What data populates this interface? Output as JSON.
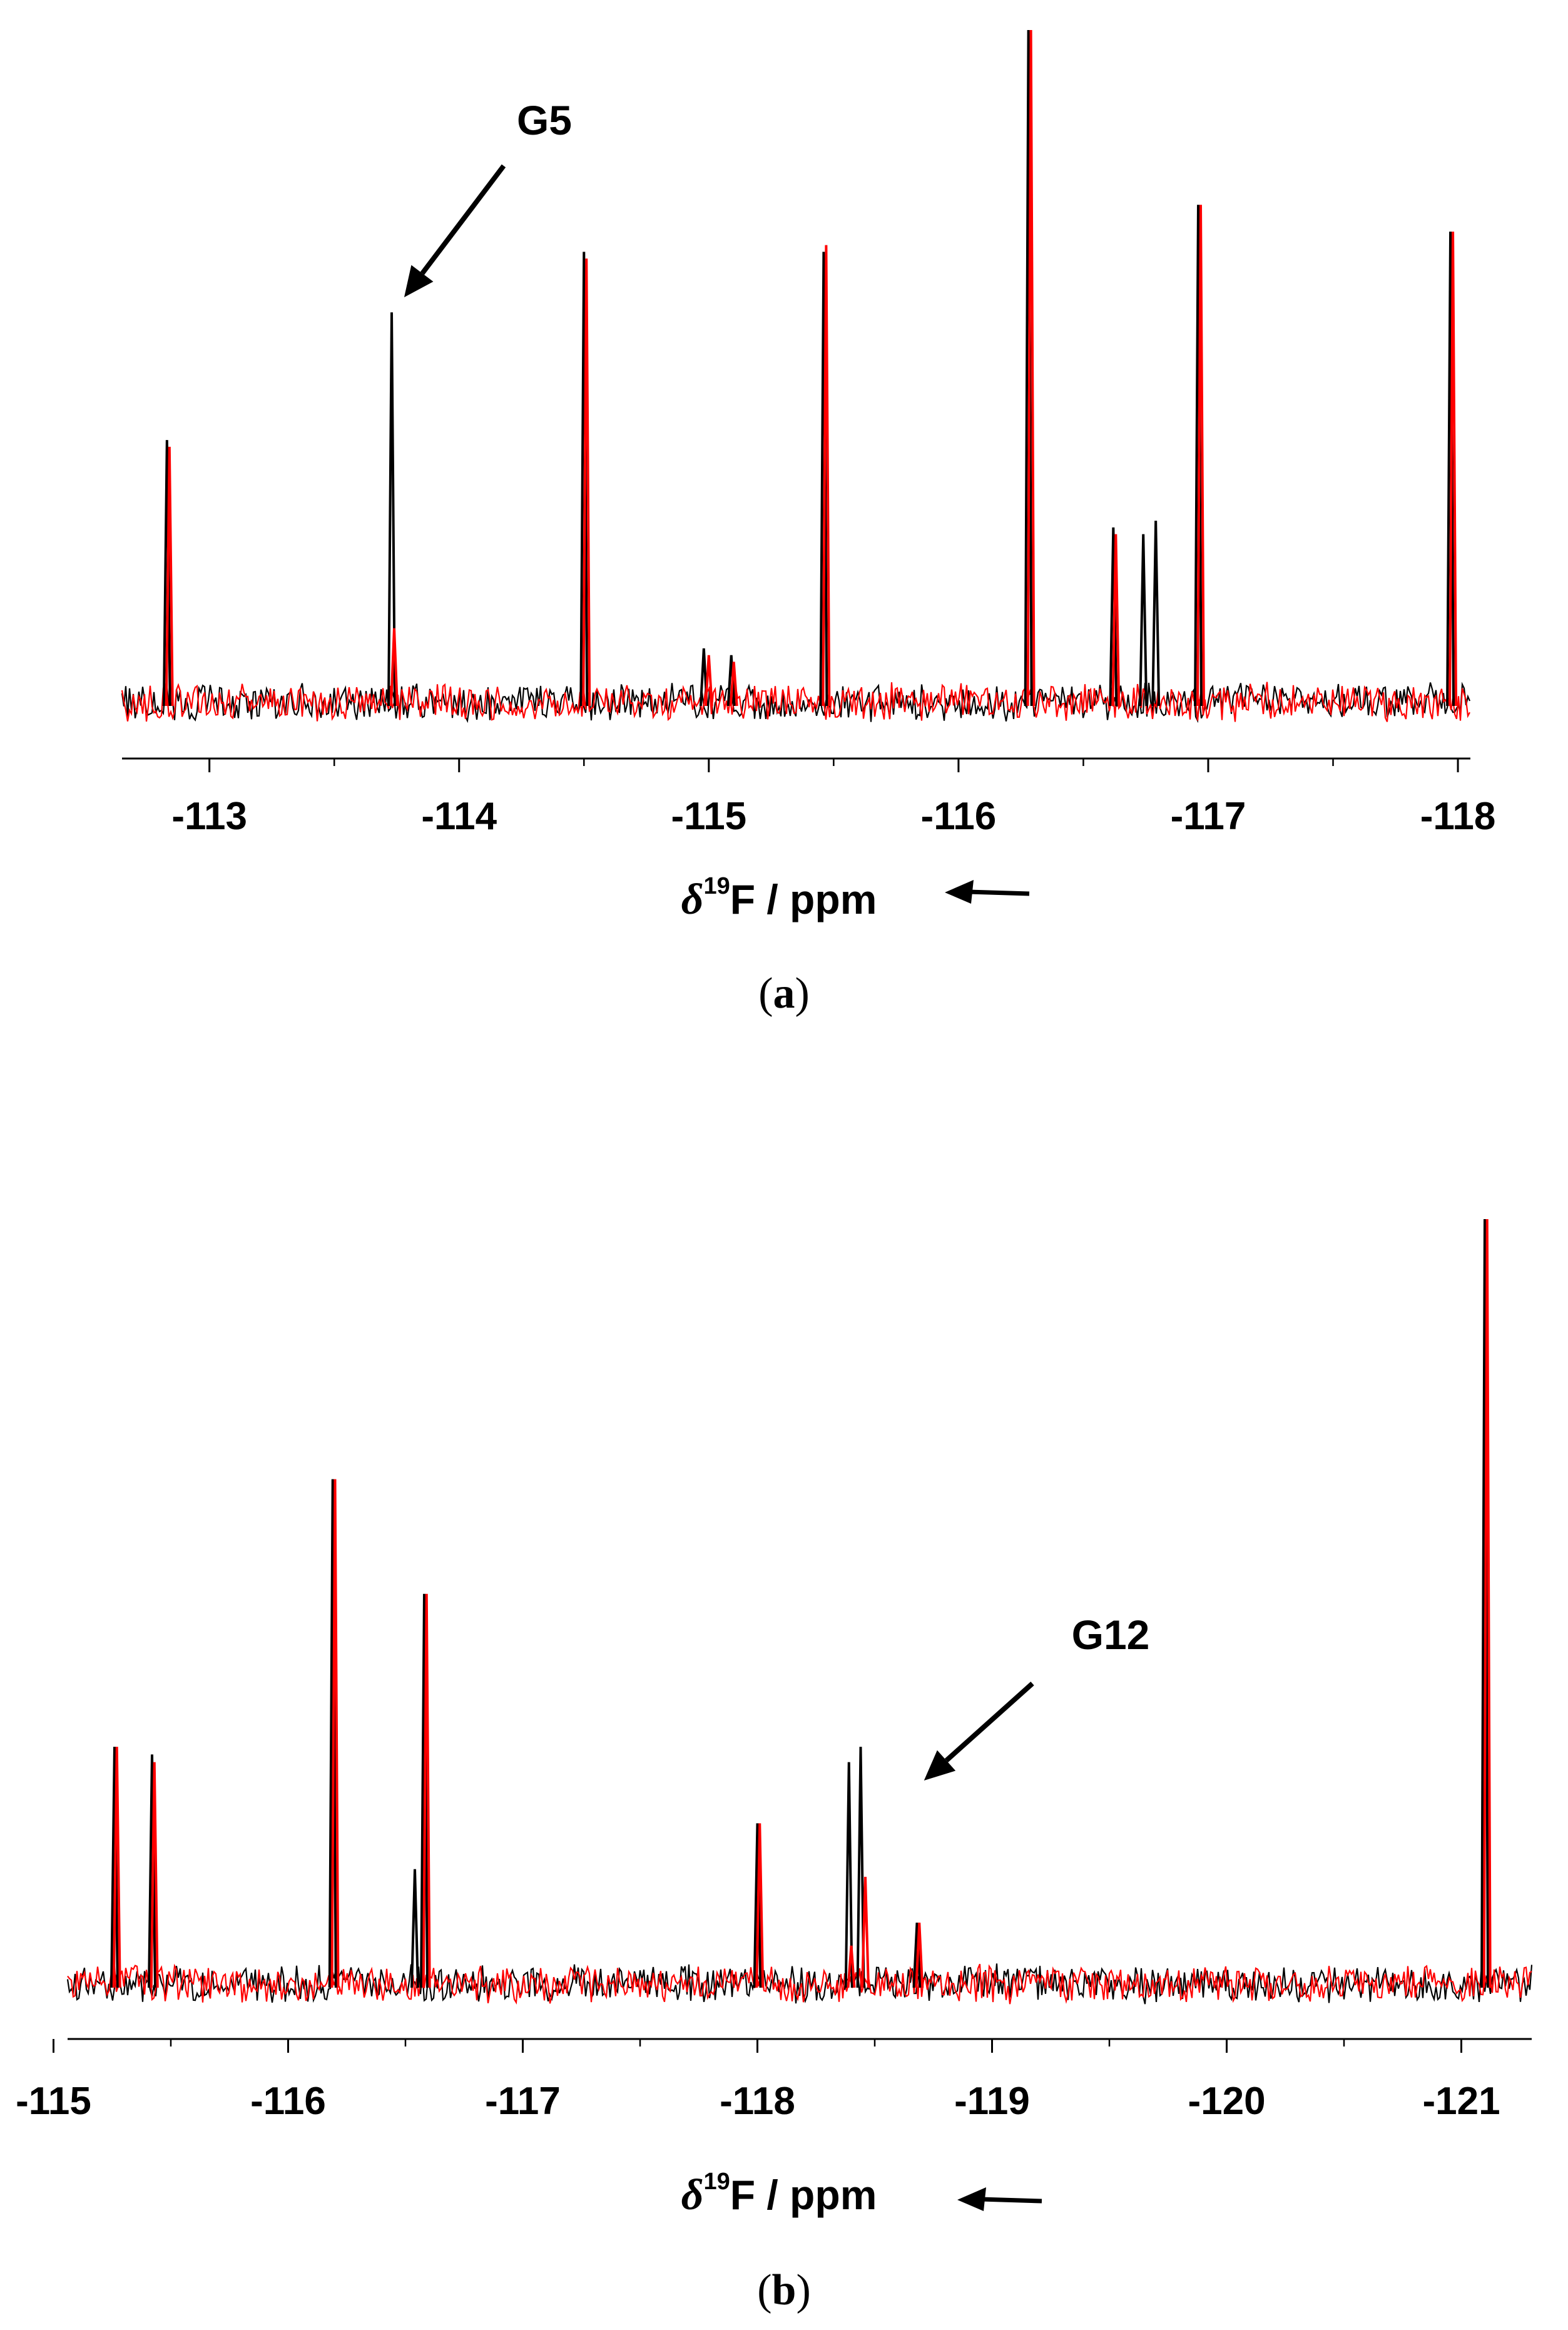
{
  "chart_data": [
    {
      "type": "line",
      "panel_label": "a",
      "xlabel_symbol": "δ",
      "xlabel_superscript": "19",
      "xlabel_rest": "F / ppm",
      "xlim": [
        -112.65,
        -118.05
      ],
      "xticks": [
        -113,
        -114,
        -115,
        -116,
        -117,
        -118
      ],
      "tick_labels": [
        "-113",
        "-114",
        "-115",
        "-116",
        "-117",
        "-118"
      ],
      "series": [
        {
          "color": "#000000",
          "peaks": [
            {
              "x": -112.83,
              "y": 0.39
            },
            {
              "x": -113.73,
              "y": 0.58
            },
            {
              "x": -114.5,
              "y": 0.67
            },
            {
              "x": -114.98,
              "y": 0.08
            },
            {
              "x": -115.09,
              "y": 0.07
            },
            {
              "x": -115.46,
              "y": 0.67
            },
            {
              "x": -116.28,
              "y": 1.0
            },
            {
              "x": -116.62,
              "y": 0.26
            },
            {
              "x": -116.74,
              "y": 0.25
            },
            {
              "x": -116.79,
              "y": 0.27
            },
            {
              "x": -116.96,
              "y": 0.74
            },
            {
              "x": -117.97,
              "y": 0.7
            }
          ]
        },
        {
          "color": "#ff0000",
          "peaks": [
            {
              "x": -112.84,
              "y": 0.38
            },
            {
              "x": -113.74,
              "y": 0.11
            },
            {
              "x": -114.51,
              "y": 0.66
            },
            {
              "x": -115.0,
              "y": 0.07
            },
            {
              "x": -115.1,
              "y": 0.06
            },
            {
              "x": -115.47,
              "y": 0.68
            },
            {
              "x": -116.29,
              "y": 1.0
            },
            {
              "x": -116.63,
              "y": 0.25
            },
            {
              "x": -116.97,
              "y": 0.74
            },
            {
              "x": -117.98,
              "y": 0.7
            }
          ]
        }
      ],
      "annotations": [
        {
          "text": "G5",
          "arrow_to_x": -113.78
        }
      ]
    },
    {
      "type": "line",
      "panel_label": "b",
      "xlabel_symbol": "δ",
      "xlabel_superscript": "19",
      "xlabel_rest": "F / ppm",
      "xlim": [
        -115.06,
        -121.3
      ],
      "xticks": [
        -115,
        -116,
        -117,
        -118,
        -119,
        -120,
        -121
      ],
      "tick_labels": [
        "-115",
        "-116",
        "-117",
        "-118",
        "-119",
        "-120",
        "-121"
      ],
      "series": [
        {
          "color": "#000000",
          "peaks": [
            {
              "x": -115.26,
              "y": 0.31
            },
            {
              "x": -115.42,
              "y": 0.3
            },
            {
              "x": -116.19,
              "y": 0.66
            },
            {
              "x": -116.54,
              "y": 0.15
            },
            {
              "x": -116.58,
              "y": 0.51
            },
            {
              "x": -118.0,
              "y": 0.21
            },
            {
              "x": -118.39,
              "y": 0.29
            },
            {
              "x": -118.44,
              "y": 0.31
            },
            {
              "x": -118.68,
              "y": 0.08
            },
            {
              "x": -121.1,
              "y": 1.0
            }
          ]
        },
        {
          "color": "#ff0000",
          "peaks": [
            {
              "x": -115.27,
              "y": 0.31
            },
            {
              "x": -115.43,
              "y": 0.29
            },
            {
              "x": -116.2,
              "y": 0.66
            },
            {
              "x": -116.59,
              "y": 0.51
            },
            {
              "x": -118.01,
              "y": 0.21
            },
            {
              "x": -118.4,
              "y": 0.05
            },
            {
              "x": -118.46,
              "y": 0.14
            },
            {
              "x": -118.69,
              "y": 0.08
            },
            {
              "x": -121.11,
              "y": 1.0
            }
          ]
        }
      ],
      "annotations": [
        {
          "text": "G12",
          "arrow_to_x": -118.71
        }
      ]
    }
  ]
}
